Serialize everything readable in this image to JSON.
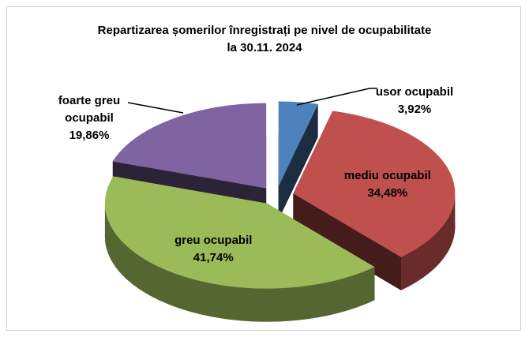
{
  "chart_data": {
    "type": "pie",
    "title": "Repartizarea șomerilor înregistrați  pe nivel de ocupabilitate",
    "subtitle": "la 30.11. 2024",
    "categories": [
      "usor ocupabil",
      "mediu ocupabil",
      "greu ocupabil",
      "foarte greu ocupabil"
    ],
    "values": [
      3.92,
      34.48,
      41.74,
      19.86
    ],
    "value_labels": [
      "3,92%",
      "34,48%",
      "41,74%",
      "19,86%"
    ],
    "colors": [
      "#4f81bd",
      "#c0504d",
      "#9bbb59",
      "#8064a2"
    ]
  }
}
